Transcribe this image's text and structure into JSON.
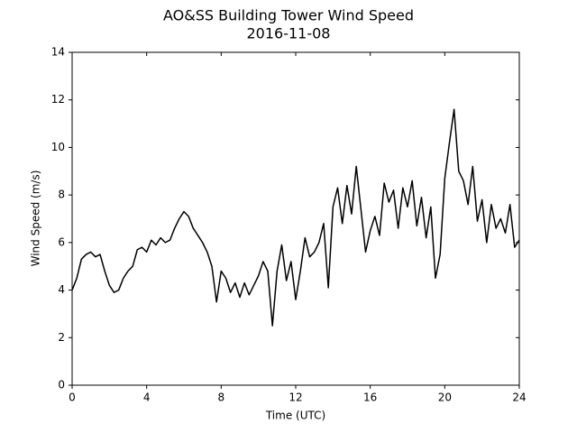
{
  "chart_data": {
    "type": "line",
    "title": "AO&SS Building Tower Wind Speed",
    "subtitle": "2016-11-08",
    "x_label": "Time (UTC)",
    "y_label": "Wind Speed (m/s)",
    "xlim": [
      0,
      24
    ],
    "xticks": [
      0,
      4,
      8,
      12,
      16,
      20,
      24
    ],
    "ylim": [
      0,
      14
    ],
    "yticks": [
      0,
      2,
      4,
      6,
      8,
      10,
      12,
      14
    ],
    "grid": false,
    "series": [
      {
        "color": "#000000",
        "x": [
          0,
          0.25,
          0.5,
          0.75,
          1.0,
          1.25,
          1.5,
          1.75,
          2.0,
          2.25,
          2.5,
          2.75,
          3.0,
          3.25,
          3.5,
          3.75,
          4.0,
          4.25,
          4.5,
          4.75,
          5.0,
          5.25,
          5.5,
          5.75,
          6.0,
          6.25,
          6.5,
          6.75,
          7.0,
          7.25,
          7.5,
          7.75,
          8.0,
          8.25,
          8.5,
          8.75,
          9.0,
          9.25,
          9.5,
          9.75,
          10.0,
          10.25,
          10.5,
          10.75,
          11.0,
          11.25,
          11.5,
          11.75,
          12.0,
          12.25,
          12.5,
          12.75,
          13.0,
          13.25,
          13.5,
          13.75,
          14.0,
          14.25,
          14.5,
          14.75,
          15.0,
          15.25,
          15.5,
          15.75,
          16.0,
          16.25,
          16.5,
          16.75,
          17.0,
          17.25,
          17.5,
          17.75,
          18.0,
          18.25,
          18.5,
          18.75,
          19.0,
          19.25,
          19.5,
          19.75,
          20.0,
          20.25,
          20.5,
          20.75,
          21.0,
          21.25,
          21.5,
          21.75,
          22.0,
          22.25,
          22.5,
          22.75,
          23.0,
          23.25,
          23.5,
          23.75,
          24.0
        ],
        "values": [
          4.0,
          4.5,
          5.3,
          5.5,
          5.6,
          5.4,
          5.5,
          4.8,
          4.2,
          3.9,
          4.0,
          4.5,
          4.8,
          5.0,
          5.7,
          5.8,
          5.6,
          6.1,
          5.9,
          6.2,
          6.0,
          6.1,
          6.6,
          7.0,
          7.3,
          7.1,
          6.6,
          6.3,
          6.0,
          5.6,
          5.0,
          3.5,
          4.8,
          4.5,
          3.9,
          4.3,
          3.7,
          4.3,
          3.8,
          4.2,
          4.6,
          5.2,
          4.8,
          2.5,
          4.8,
          5.9,
          4.4,
          5.2,
          3.6,
          4.8,
          6.2,
          5.4,
          5.6,
          6.0,
          6.8,
          4.1,
          7.5,
          8.3,
          6.8,
          8.4,
          7.2,
          9.2,
          7.4,
          5.6,
          6.5,
          7.1,
          6.3,
          8.5,
          7.7,
          8.2,
          6.6,
          8.3,
          7.5,
          8.6,
          6.7,
          7.9,
          6.2,
          7.5,
          4.5,
          5.5,
          8.7,
          10.2,
          11.6,
          9.0,
          8.6,
          7.6,
          9.2,
          6.9,
          7.8,
          6.0,
          7.6,
          6.6,
          7.0,
          6.4,
          7.6,
          5.8,
          6.1
        ]
      }
    ]
  }
}
